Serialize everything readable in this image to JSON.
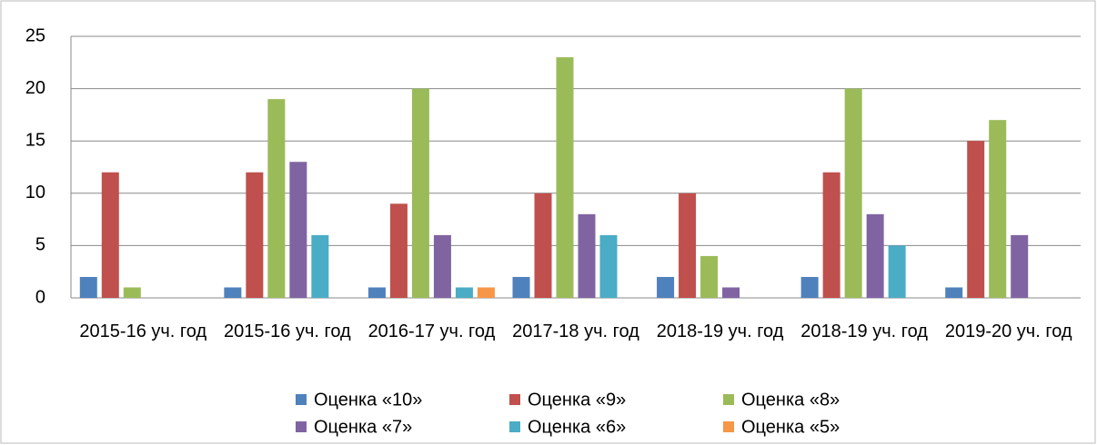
{
  "chart_data": {
    "type": "bar",
    "categories": [
      "2015-16 уч. год",
      "2015-16 уч. год",
      "2016-17 уч. год",
      "2017-18 уч. год",
      "2018-19 уч. год",
      "2018-19 уч. год",
      "2019-20 уч. год"
    ],
    "series": [
      {
        "name": "Оценка «10»",
        "color": "#4f81bd",
        "values": [
          2,
          1,
          1,
          2,
          2,
          2,
          1
        ]
      },
      {
        "name": "Оценка «9»",
        "color": "#c0504d",
        "values": [
          12,
          12,
          9,
          10,
          10,
          12,
          15
        ]
      },
      {
        "name": "Оценка «8»",
        "color": "#9bbb59",
        "values": [
          1,
          19,
          20,
          23,
          4,
          20,
          17
        ]
      },
      {
        "name": "Оценка «7»",
        "color": "#8064a2",
        "values": [
          0,
          13,
          6,
          8,
          1,
          8,
          6
        ]
      },
      {
        "name": "Оценка «6»",
        "color": "#4bacc6",
        "values": [
          0,
          6,
          1,
          6,
          0,
          5,
          0
        ]
      },
      {
        "name": "Оценка «5»",
        "color": "#f79646",
        "values": [
          0,
          0,
          1,
          0,
          0,
          0,
          0
        ]
      }
    ],
    "ylim": [
      0,
      25
    ],
    "yticks": [
      0,
      5,
      10,
      15,
      20,
      25
    ],
    "grid": true,
    "legend": "bottom"
  }
}
